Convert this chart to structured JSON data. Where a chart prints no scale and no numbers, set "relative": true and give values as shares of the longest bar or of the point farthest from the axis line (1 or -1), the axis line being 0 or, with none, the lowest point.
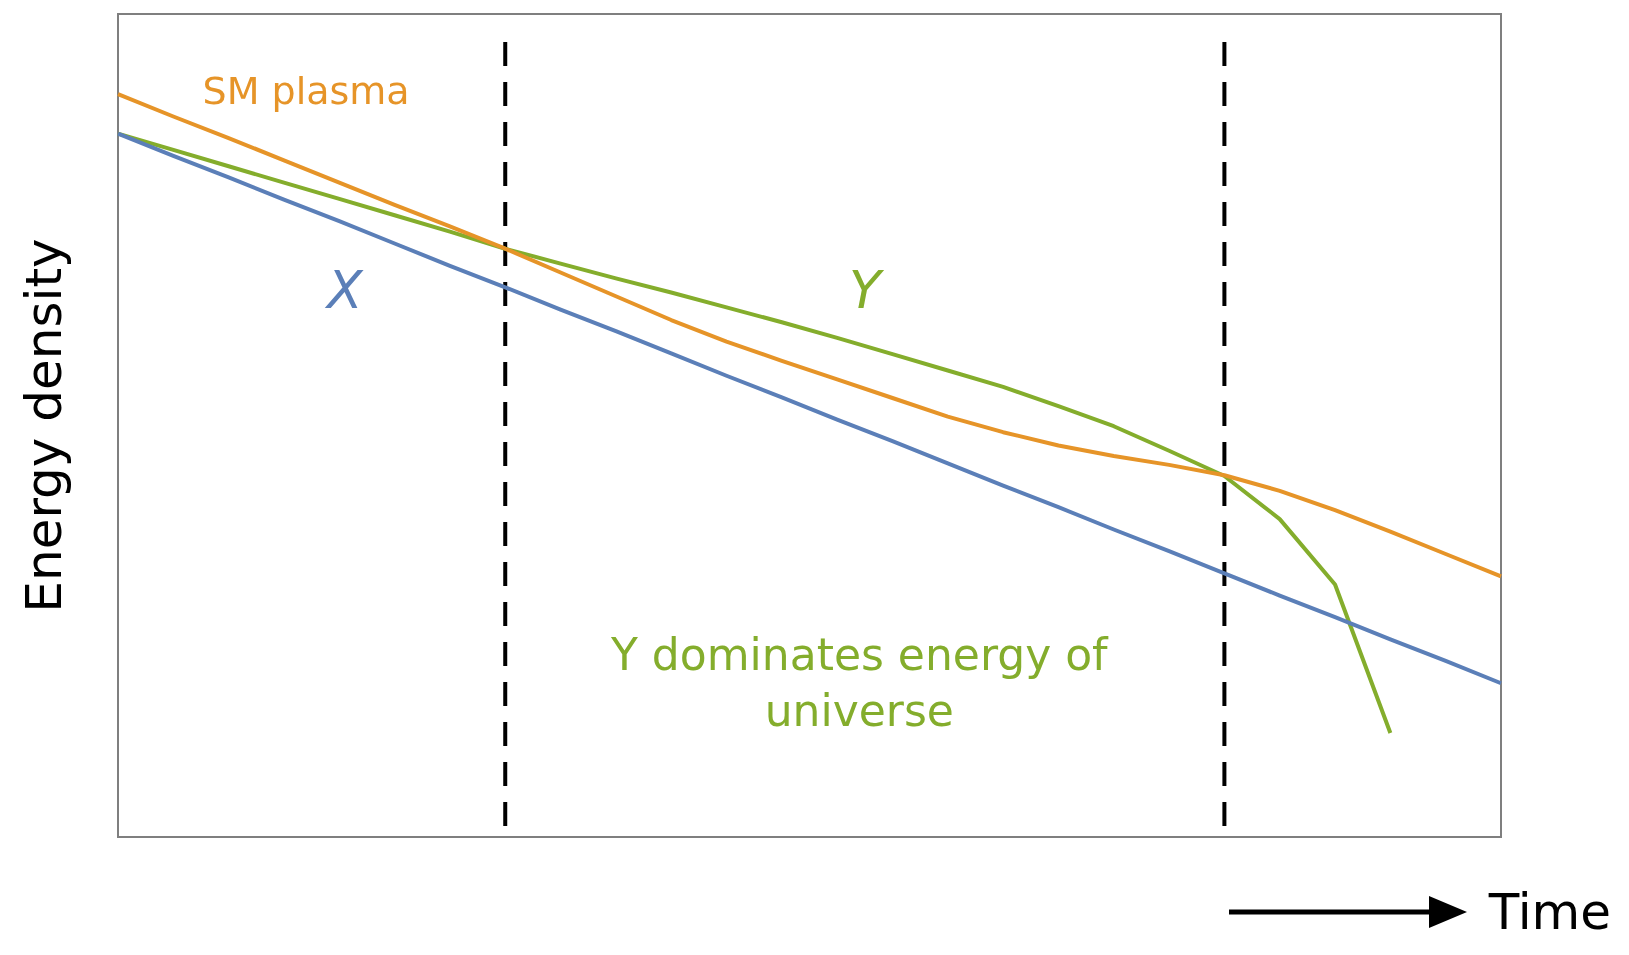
{
  "chart_data": {
    "type": "line",
    "relative": true,
    "ylabel": "Energy density",
    "xlabel": "Time",
    "legend": false,
    "categories": [
      null,
      null,
      null,
      null,
      null,
      null,
      null,
      null,
      null,
      null,
      null,
      null,
      null,
      null,
      null,
      null,
      null,
      null,
      null,
      null,
      null,
      null,
      null,
      null,
      null,
      null
    ],
    "series": [
      {
        "name": "X",
        "color": "#5b7fb8",
        "values": [
          0.947,
          0.917,
          0.888,
          0.858,
          0.829,
          0.799,
          0.769,
          0.74,
          0.71,
          0.681,
          0.651,
          0.621,
          0.592,
          0.562,
          0.533,
          0.503,
          0.473,
          0.444,
          0.414,
          0.385,
          0.355,
          0.325,
          0.296,
          0.266,
          0.237,
          0.207
        ]
      },
      {
        "name": "SM plasma",
        "color": "#e69428",
        "values": [
          1.0,
          0.97,
          0.941,
          0.911,
          0.881,
          0.851,
          0.822,
          0.792,
          0.76,
          0.728,
          0.696,
          0.667,
          0.641,
          0.616,
          0.591,
          0.566,
          0.545,
          0.527,
          0.513,
          0.501,
          0.487,
          0.466,
          0.44,
          0.411,
          0.381,
          0.351
        ]
      },
      {
        "name": "Y",
        "color": "#84ad2c",
        "values": [
          0.947,
          0.925,
          0.903,
          0.881,
          0.859,
          0.837,
          0.815,
          0.792,
          0.772,
          0.752,
          0.733,
          0.713,
          0.693,
          0.672,
          0.65,
          0.628,
          0.606,
          0.58,
          0.553,
          0.52,
          0.486,
          0.428,
          0.34,
          0.14,
          null,
          null
        ]
      }
    ],
    "annotations": [
      "Y dominates energy of universe"
    ]
  }
}
